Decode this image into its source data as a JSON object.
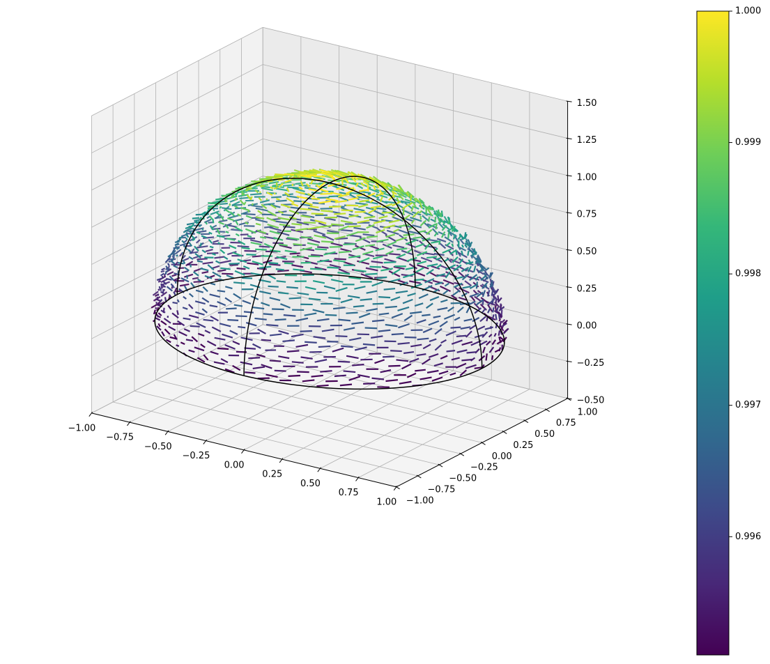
{
  "chart_data": {
    "type": "quiver3d",
    "title": "",
    "xlabel": "",
    "ylabel": "",
    "zlabel": "",
    "xlim": [
      -1.0,
      1.0
    ],
    "ylim": [
      -1.0,
      1.0
    ],
    "zlim": [
      -0.5,
      1.5
    ],
    "x_ticks": [
      "−1.00",
      "−0.75",
      "−0.50",
      "−0.25",
      "0.00",
      "0.25",
      "0.50",
      "0.75",
      "1.00"
    ],
    "y_ticks": [
      "−1.00",
      "−0.75",
      "−0.50",
      "−0.25",
      "0.00",
      "0.25",
      "0.50",
      "0.75",
      "1.00"
    ],
    "z_ticks": [
      "−0.50",
      "−0.25",
      "0.00",
      "0.25",
      "0.50",
      "0.75",
      "1.00",
      "1.25",
      "1.50"
    ],
    "grid": true,
    "surface": {
      "shape": "upper hemisphere",
      "radius": 1.0,
      "outline_color": "#000000",
      "arrow_count_approx": 1500
    },
    "colorbar": {
      "cmap": "viridis",
      "vmin": 0.9951,
      "vmax": 1.0,
      "ticks": [
        "0.996",
        "0.997",
        "0.998",
        "0.999",
        "1.000"
      ],
      "tick_values": [
        0.996,
        0.997,
        0.998,
        0.999,
        1.0
      ]
    },
    "colors": {
      "viridis": [
        "#440154",
        "#482878",
        "#3e4989",
        "#31688e",
        "#26828e",
        "#1f9e89",
        "#35b779",
        "#6ece58",
        "#b5de2b",
        "#fde725"
      ],
      "pane_left": "#f2f2f2",
      "pane_right": "#ebebeb",
      "pane_floor": "#f4f4f4",
      "grid": "#b0b0b0"
    }
  }
}
